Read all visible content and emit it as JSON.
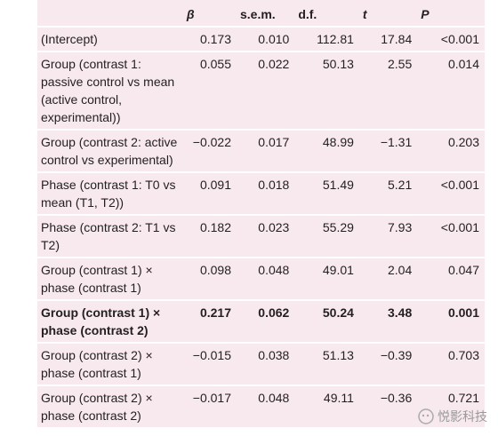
{
  "table": {
    "header": [
      "",
      "β",
      "s.e.m.",
      "d.f.",
      "t",
      "P"
    ],
    "rows": [
      [
        "(Intercept)",
        "0.173",
        "0.010",
        "112.81",
        "17.84",
        "<0.001"
      ],
      [
        "Group (contrast 1: passive control vs mean (active control, experimental))",
        "0.055",
        "0.022",
        "50.13",
        "2.55",
        "0.014"
      ],
      [
        "Group (contrast 2: active control vs experimental)",
        "−0.022",
        "0.017",
        "48.99",
        "−1.31",
        "0.203"
      ],
      [
        "Phase (contrast 1: T0 vs mean (T1, T2))",
        "0.091",
        "0.018",
        "51.49",
        "5.21",
        "<0.001"
      ],
      [
        "Phase (contrast 2: T1 vs T2)",
        "0.182",
        "0.023",
        "55.29",
        "7.93",
        "<0.001"
      ],
      [
        "Group (contrast 1) × phase (contrast 1)",
        "0.098",
        "0.048",
        "49.01",
        "2.04",
        "0.047"
      ],
      [
        "Group (contrast 1) × phase (contrast 2)",
        "0.217",
        "0.062",
        "50.24",
        "3.48",
        "0.001"
      ],
      [
        "Group (contrast 2) × phase (contrast 1)",
        "−0.015",
        "0.038",
        "51.13",
        "−0.39",
        "0.703"
      ],
      [
        "Group (contrast 2) × phase (contrast 2)",
        "−0.017",
        "0.048",
        "49.11",
        "−0.36",
        "0.721"
      ]
    ],
    "bold_rows": [
      6
    ]
  },
  "watermark": "悦影科技"
}
